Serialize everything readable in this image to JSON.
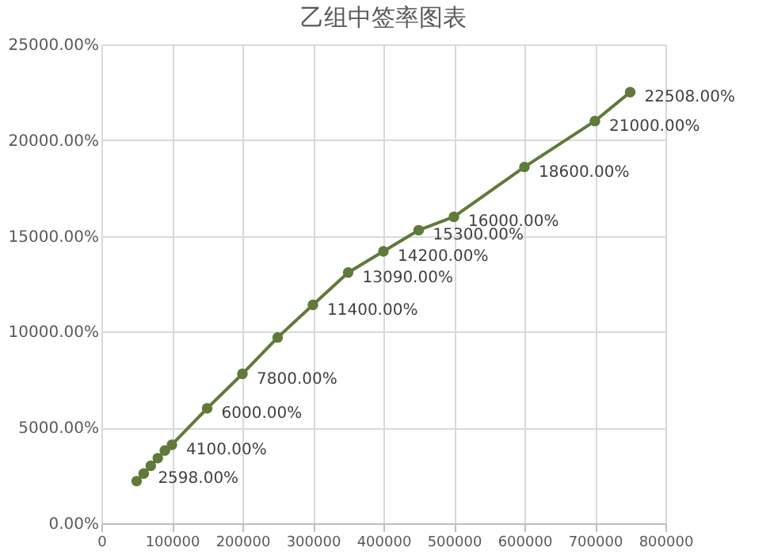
{
  "chart_data": {
    "type": "line",
    "title": "乙组中签率图表",
    "x": [
      50000,
      60000,
      70000,
      80000,
      90000,
      100000,
      150000,
      200000,
      250000,
      300000,
      350000,
      400000,
      450000,
      500000,
      600000,
      700000,
      750000
    ],
    "series": [
      {
        "color": "#61793a",
        "values": [
          2200,
          2598,
          3000,
          3400,
          3800,
          4100,
          6000,
          7800,
          9700,
          11400,
          13090,
          14200,
          15300,
          16000,
          18600,
          21000,
          22508
        ],
        "value_labels": [
          null,
          "2598.00%",
          null,
          null,
          null,
          "4100.00%",
          "6000.00%",
          "7800.00%",
          null,
          "11400.00%",
          "13090.00%",
          "14200.00%",
          "15300.00%",
          "16000.00%",
          "18600.00%",
          "21000.00%",
          "22508.00%"
        ]
      }
    ],
    "xlim": [
      0,
      800000
    ],
    "xticks": [
      0,
      100000,
      200000,
      300000,
      400000,
      500000,
      600000,
      700000,
      800000
    ],
    "ylim": [
      0,
      25000
    ],
    "yticks": [
      {
        "value": 0,
        "label": "0.00%"
      },
      {
        "value": 5000,
        "label": "5000.00%"
      },
      {
        "value": 10000,
        "label": "10000.00%"
      },
      {
        "value": 15000,
        "label": "15000.00%"
      },
      {
        "value": 20000,
        "label": "20000.00%"
      },
      {
        "value": 25000,
        "label": "25000.00%"
      }
    ],
    "grid": true,
    "marker": "circle",
    "line_style": "solid"
  }
}
